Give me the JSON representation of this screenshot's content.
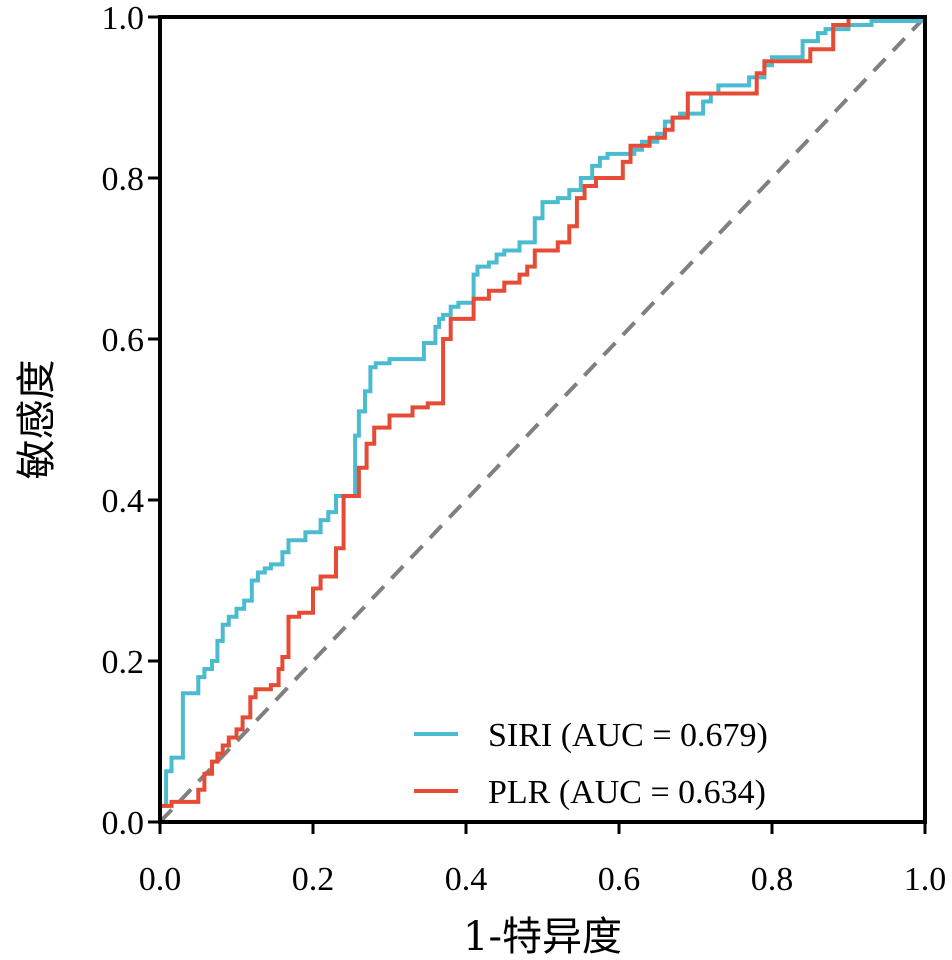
{
  "chart_data": {
    "type": "line",
    "title": "",
    "xlabel": "1-特异度",
    "ylabel": "敏感度",
    "xlim": [
      0,
      1
    ],
    "ylim": [
      0,
      1
    ],
    "grid": false,
    "legend_position": "bottom-right",
    "x_ticks": [
      "0.0",
      "0.2",
      "0.4",
      "0.6",
      "0.8",
      "1.0"
    ],
    "y_ticks": [
      "0.0",
      "0.2",
      "0.4",
      "0.6",
      "0.8",
      "1.0"
    ],
    "diagonal": {
      "name": "chance",
      "color": "#808080",
      "style": "dashed"
    },
    "series": [
      {
        "name": "SIRI",
        "legend_label": "SIRI (AUC = 0.679)",
        "auc": 0.679,
        "color": "#4BBBD0",
        "points": [
          [
            0,
            0
          ],
          [
            0,
            0.02
          ],
          [
            0.008,
            0.02
          ],
          [
            0.008,
            0.063
          ],
          [
            0.015,
            0.063
          ],
          [
            0.015,
            0.08
          ],
          [
            0.03,
            0.08
          ],
          [
            0.03,
            0.16
          ],
          [
            0.05,
            0.16
          ],
          [
            0.05,
            0.18
          ],
          [
            0.058,
            0.18
          ],
          [
            0.058,
            0.19
          ],
          [
            0.068,
            0.19
          ],
          [
            0.068,
            0.2
          ],
          [
            0.075,
            0.2
          ],
          [
            0.075,
            0.225
          ],
          [
            0.082,
            0.225
          ],
          [
            0.082,
            0.245
          ],
          [
            0.09,
            0.245
          ],
          [
            0.09,
            0.255
          ],
          [
            0.1,
            0.255
          ],
          [
            0.1,
            0.265
          ],
          [
            0.11,
            0.265
          ],
          [
            0.11,
            0.275
          ],
          [
            0.12,
            0.275
          ],
          [
            0.12,
            0.3
          ],
          [
            0.128,
            0.3
          ],
          [
            0.128,
            0.31
          ],
          [
            0.137,
            0.31
          ],
          [
            0.137,
            0.315
          ],
          [
            0.145,
            0.315
          ],
          [
            0.145,
            0.32
          ],
          [
            0.16,
            0.32
          ],
          [
            0.16,
            0.335
          ],
          [
            0.168,
            0.335
          ],
          [
            0.168,
            0.35
          ],
          [
            0.19,
            0.35
          ],
          [
            0.19,
            0.36
          ],
          [
            0.21,
            0.36
          ],
          [
            0.21,
            0.375
          ],
          [
            0.22,
            0.375
          ],
          [
            0.22,
            0.385
          ],
          [
            0.23,
            0.385
          ],
          [
            0.23,
            0.405
          ],
          [
            0.255,
            0.405
          ],
          [
            0.255,
            0.48
          ],
          [
            0.26,
            0.48
          ],
          [
            0.26,
            0.51
          ],
          [
            0.268,
            0.51
          ],
          [
            0.268,
            0.535
          ],
          [
            0.275,
            0.535
          ],
          [
            0.275,
            0.565
          ],
          [
            0.282,
            0.565
          ],
          [
            0.282,
            0.57
          ],
          [
            0.3,
            0.57
          ],
          [
            0.3,
            0.575
          ],
          [
            0.345,
            0.575
          ],
          [
            0.345,
            0.595
          ],
          [
            0.36,
            0.595
          ],
          [
            0.36,
            0.615
          ],
          [
            0.365,
            0.615
          ],
          [
            0.365,
            0.625
          ],
          [
            0.37,
            0.625
          ],
          [
            0.37,
            0.63
          ],
          [
            0.38,
            0.63
          ],
          [
            0.38,
            0.64
          ],
          [
            0.39,
            0.64
          ],
          [
            0.39,
            0.645
          ],
          [
            0.41,
            0.645
          ],
          [
            0.41,
            0.68
          ],
          [
            0.415,
            0.68
          ],
          [
            0.415,
            0.69
          ],
          [
            0.43,
            0.69
          ],
          [
            0.43,
            0.695
          ],
          [
            0.44,
            0.695
          ],
          [
            0.44,
            0.705
          ],
          [
            0.45,
            0.705
          ],
          [
            0.45,
            0.71
          ],
          [
            0.47,
            0.71
          ],
          [
            0.47,
            0.72
          ],
          [
            0.49,
            0.72
          ],
          [
            0.49,
            0.75
          ],
          [
            0.5,
            0.75
          ],
          [
            0.5,
            0.77
          ],
          [
            0.52,
            0.77
          ],
          [
            0.52,
            0.775
          ],
          [
            0.535,
            0.775
          ],
          [
            0.535,
            0.785
          ],
          [
            0.55,
            0.785
          ],
          [
            0.55,
            0.8
          ],
          [
            0.565,
            0.8
          ],
          [
            0.565,
            0.815
          ],
          [
            0.575,
            0.815
          ],
          [
            0.575,
            0.825
          ],
          [
            0.585,
            0.825
          ],
          [
            0.585,
            0.83
          ],
          [
            0.62,
            0.83
          ],
          [
            0.62,
            0.835
          ],
          [
            0.63,
            0.835
          ],
          [
            0.63,
            0.845
          ],
          [
            0.65,
            0.845
          ],
          [
            0.65,
            0.855
          ],
          [
            0.66,
            0.855
          ],
          [
            0.66,
            0.87
          ],
          [
            0.67,
            0.87
          ],
          [
            0.67,
            0.875
          ],
          [
            0.68,
            0.875
          ],
          [
            0.68,
            0.88
          ],
          [
            0.71,
            0.88
          ],
          [
            0.71,
            0.895
          ],
          [
            0.72,
            0.895
          ],
          [
            0.72,
            0.905
          ],
          [
            0.73,
            0.905
          ],
          [
            0.73,
            0.915
          ],
          [
            0.77,
            0.915
          ],
          [
            0.77,
            0.925
          ],
          [
            0.79,
            0.925
          ],
          [
            0.79,
            0.94
          ],
          [
            0.8,
            0.94
          ],
          [
            0.8,
            0.95
          ],
          [
            0.84,
            0.95
          ],
          [
            0.84,
            0.97
          ],
          [
            0.86,
            0.97
          ],
          [
            0.86,
            0.98
          ],
          [
            0.87,
            0.98
          ],
          [
            0.87,
            0.985
          ],
          [
            0.9,
            0.985
          ],
          [
            0.9,
            0.99
          ],
          [
            0.93,
            0.99
          ],
          [
            0.93,
            0.995
          ],
          [
            1,
            0.995
          ],
          [
            1,
            1
          ]
        ]
      },
      {
        "name": "PLR",
        "legend_label": "PLR (AUC = 0.634)",
        "auc": 0.634,
        "color": "#E64B35",
        "points": [
          [
            0,
            0
          ],
          [
            0,
            0.02
          ],
          [
            0.015,
            0.02
          ],
          [
            0.015,
            0.025
          ],
          [
            0.05,
            0.025
          ],
          [
            0.05,
            0.04
          ],
          [
            0.058,
            0.04
          ],
          [
            0.058,
            0.06
          ],
          [
            0.068,
            0.06
          ],
          [
            0.068,
            0.075
          ],
          [
            0.075,
            0.075
          ],
          [
            0.075,
            0.085
          ],
          [
            0.082,
            0.085
          ],
          [
            0.082,
            0.095
          ],
          [
            0.09,
            0.095
          ],
          [
            0.09,
            0.105
          ],
          [
            0.1,
            0.105
          ],
          [
            0.1,
            0.115
          ],
          [
            0.108,
            0.115
          ],
          [
            0.108,
            0.13
          ],
          [
            0.118,
            0.13
          ],
          [
            0.118,
            0.155
          ],
          [
            0.125,
            0.155
          ],
          [
            0.125,
            0.165
          ],
          [
            0.145,
            0.165
          ],
          [
            0.145,
            0.17
          ],
          [
            0.155,
            0.17
          ],
          [
            0.155,
            0.19
          ],
          [
            0.16,
            0.19
          ],
          [
            0.16,
            0.205
          ],
          [
            0.168,
            0.205
          ],
          [
            0.168,
            0.255
          ],
          [
            0.182,
            0.255
          ],
          [
            0.182,
            0.26
          ],
          [
            0.2,
            0.26
          ],
          [
            0.2,
            0.29
          ],
          [
            0.21,
            0.29
          ],
          [
            0.21,
            0.305
          ],
          [
            0.23,
            0.305
          ],
          [
            0.23,
            0.34
          ],
          [
            0.24,
            0.34
          ],
          [
            0.24,
            0.405
          ],
          [
            0.26,
            0.405
          ],
          [
            0.26,
            0.44
          ],
          [
            0.27,
            0.44
          ],
          [
            0.27,
            0.47
          ],
          [
            0.28,
            0.47
          ],
          [
            0.28,
            0.49
          ],
          [
            0.3,
            0.49
          ],
          [
            0.3,
            0.505
          ],
          [
            0.33,
            0.505
          ],
          [
            0.33,
            0.515
          ],
          [
            0.35,
            0.515
          ],
          [
            0.35,
            0.52
          ],
          [
            0.37,
            0.52
          ],
          [
            0.37,
            0.6
          ],
          [
            0.38,
            0.6
          ],
          [
            0.38,
            0.625
          ],
          [
            0.41,
            0.625
          ],
          [
            0.41,
            0.65
          ],
          [
            0.43,
            0.65
          ],
          [
            0.43,
            0.66
          ],
          [
            0.45,
            0.66
          ],
          [
            0.45,
            0.67
          ],
          [
            0.47,
            0.67
          ],
          [
            0.47,
            0.68
          ],
          [
            0.48,
            0.68
          ],
          [
            0.48,
            0.69
          ],
          [
            0.49,
            0.69
          ],
          [
            0.49,
            0.71
          ],
          [
            0.52,
            0.71
          ],
          [
            0.52,
            0.72
          ],
          [
            0.535,
            0.72
          ],
          [
            0.535,
            0.74
          ],
          [
            0.545,
            0.74
          ],
          [
            0.545,
            0.775
          ],
          [
            0.555,
            0.775
          ],
          [
            0.555,
            0.79
          ],
          [
            0.57,
            0.79
          ],
          [
            0.57,
            0.8
          ],
          [
            0.605,
            0.8
          ],
          [
            0.605,
            0.82
          ],
          [
            0.615,
            0.82
          ],
          [
            0.615,
            0.84
          ],
          [
            0.64,
            0.84
          ],
          [
            0.64,
            0.85
          ],
          [
            0.66,
            0.85
          ],
          [
            0.66,
            0.86
          ],
          [
            0.67,
            0.86
          ],
          [
            0.67,
            0.875
          ],
          [
            0.69,
            0.875
          ],
          [
            0.69,
            0.905
          ],
          [
            0.78,
            0.905
          ],
          [
            0.78,
            0.93
          ],
          [
            0.79,
            0.93
          ],
          [
            0.79,
            0.945
          ],
          [
            0.85,
            0.945
          ],
          [
            0.85,
            0.96
          ],
          [
            0.88,
            0.96
          ],
          [
            0.88,
            0.99
          ],
          [
            0.9,
            0.99
          ],
          [
            0.9,
            1
          ],
          [
            1,
            1
          ]
        ]
      }
    ]
  }
}
